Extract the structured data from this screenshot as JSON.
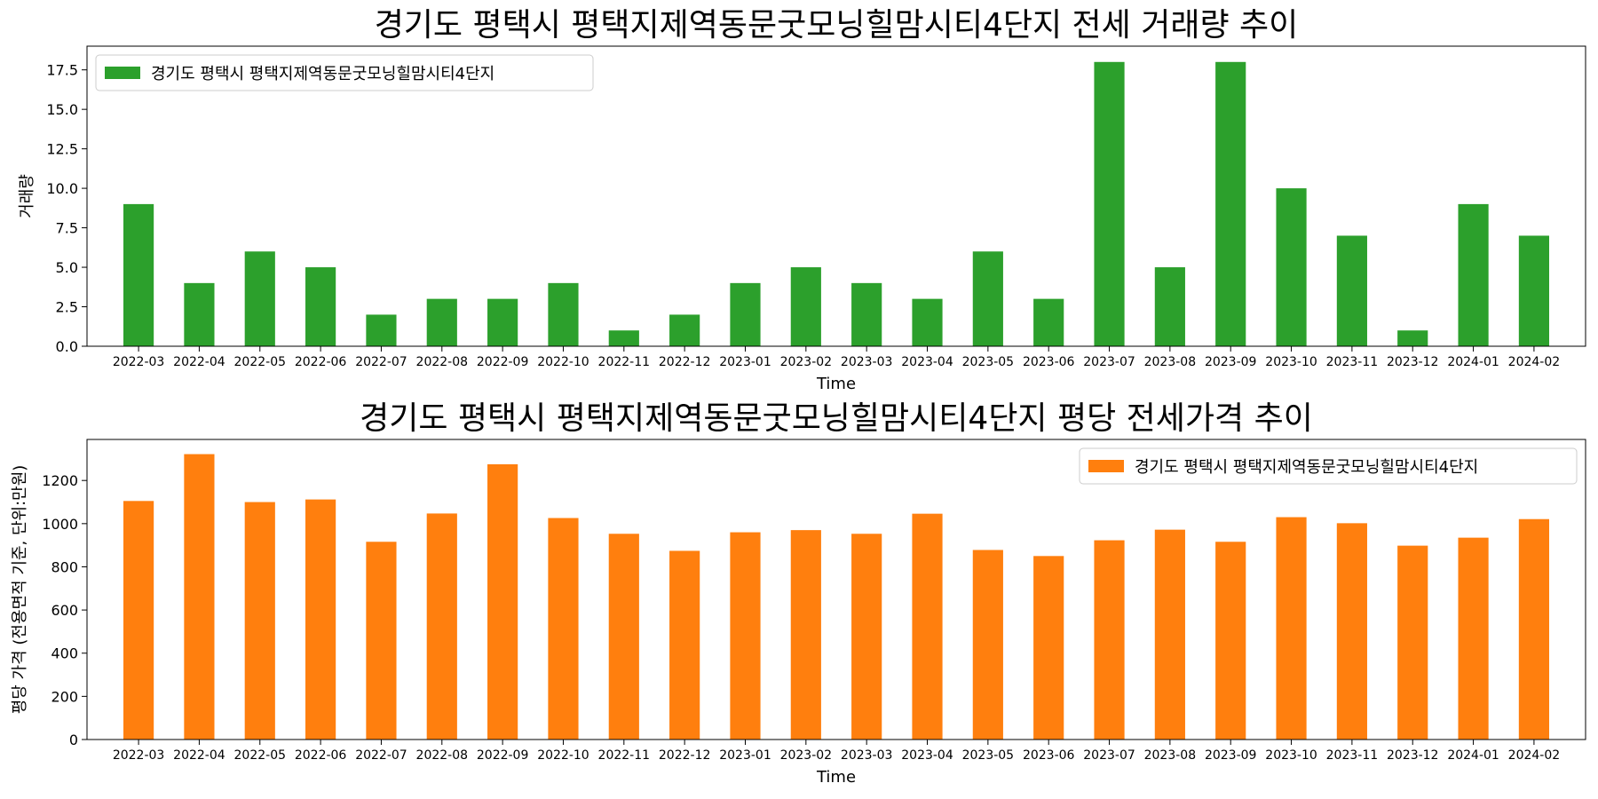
{
  "chart_data": [
    {
      "type": "bar",
      "title": "경기도 평택시 평택지제역동문굿모닝힐맘시티4단지 전세 거래량 추이",
      "xlabel": "Time",
      "ylabel": "거래량",
      "ylim": [
        0,
        19
      ],
      "yticks": [
        "0.0",
        "2.5",
        "5.0",
        "7.5",
        "10.0",
        "12.5",
        "15.0",
        "17.5"
      ],
      "legend_position": "upper left",
      "grid": false,
      "color": "#2ca02c",
      "categories": [
        "2022-03",
        "2022-04",
        "2022-05",
        "2022-06",
        "2022-07",
        "2022-08",
        "2022-09",
        "2022-10",
        "2022-11",
        "2022-12",
        "2023-01",
        "2023-02",
        "2023-03",
        "2023-04",
        "2023-05",
        "2023-06",
        "2023-07",
        "2023-08",
        "2023-09",
        "2023-10",
        "2023-11",
        "2023-12",
        "2024-01",
        "2024-02"
      ],
      "series": [
        {
          "name": "경기도 평택시 평택지제역동문굿모닝힐맘시티4단지",
          "values": [
            9,
            4,
            6,
            5,
            2,
            3,
            3,
            4,
            1,
            2,
            4,
            5,
            4,
            3,
            6,
            3,
            18,
            5,
            18,
            10,
            7,
            1,
            9,
            7
          ]
        }
      ]
    },
    {
      "type": "bar",
      "title": "경기도 평택시 평택지제역동문굿모닝힐맘시티4단지 평당 전세가격 추이",
      "xlabel": "Time",
      "ylabel": "평당 가격 (전용면적 기준, 단위:만원)",
      "ylim": [
        0,
        1390
      ],
      "yticks": [
        "0",
        "200",
        "400",
        "600",
        "800",
        "1000",
        "1200"
      ],
      "legend_position": "upper right",
      "grid": false,
      "color": "#ff7f0e",
      "categories": [
        "2022-03",
        "2022-04",
        "2022-05",
        "2022-06",
        "2022-07",
        "2022-08",
        "2022-09",
        "2022-10",
        "2022-11",
        "2022-12",
        "2023-01",
        "2023-02",
        "2023-03",
        "2023-04",
        "2023-05",
        "2023-06",
        "2023-07",
        "2023-08",
        "2023-09",
        "2023-10",
        "2023-11",
        "2023-12",
        "2024-01",
        "2024-02"
      ],
      "series": [
        {
          "name": "경기도 평택시 평택지제역동문굿모닝힐맘시티4단지",
          "values": [
            1105,
            1322,
            1100,
            1112,
            916,
            1047,
            1275,
            1026,
            953,
            874,
            960,
            970,
            953,
            1046,
            878,
            850,
            923,
            972,
            916,
            1030,
            1002,
            898,
            935,
            1021
          ]
        }
      ]
    }
  ]
}
